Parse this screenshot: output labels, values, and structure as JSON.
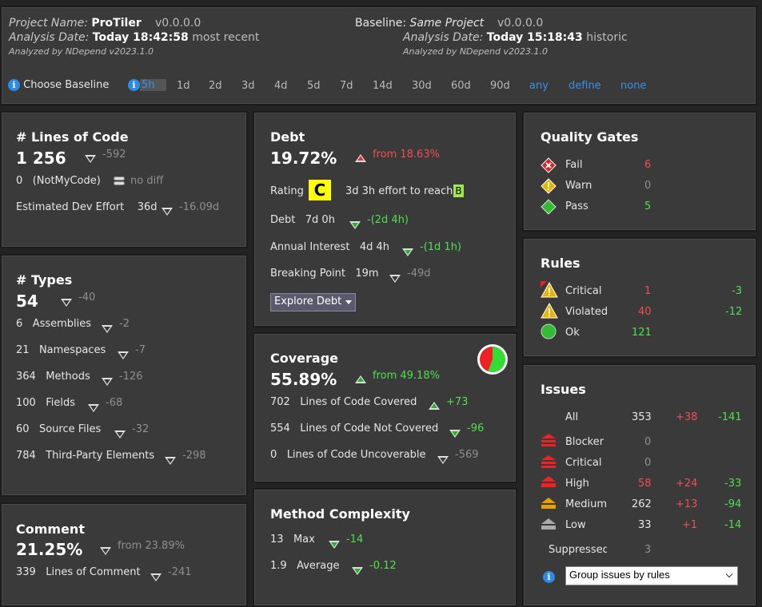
{
  "header": {
    "project_label": "Project Name:",
    "project_name": "ProTiler",
    "project_version": "v0.0.0.0",
    "analysis_label": "Analysis Date:",
    "analysis_date": "Today 18:42:58",
    "analysis_note": "most recent",
    "analyzed_by": "Analyzed by NDepend v2023.1.0",
    "baseline_label": "Baseline:",
    "baseline_name": "Same Project",
    "baseline_version": "v0.0.0.0",
    "baseline_analysis_label": "Analysis Date:",
    "baseline_analysis_date": "Today 15:18:43",
    "baseline_analysis_note": "historic",
    "baseline_analyzed_by": "Analyzed by NDepend v2023.1.0",
    "choose_baseline": "Choose Baseline",
    "options": [
      "5h",
      "1d",
      "2d",
      "3d",
      "4d",
      "5d",
      "7d",
      "14d",
      "30d",
      "60d",
      "90d"
    ],
    "links": [
      "any",
      "define",
      "none"
    ]
  },
  "loc": {
    "title": "# Lines of Code",
    "value": "1 256",
    "delta": "-592",
    "notmycode_value": "0",
    "notmycode_label": "(NotMyCode)",
    "notmycode_diff": "no diff",
    "effort_label": "Estimated Dev Effort",
    "effort_value": "36d",
    "effort_delta": "-16.09d"
  },
  "types": {
    "title": "# Types",
    "value": "54",
    "delta": "-40",
    "rows": [
      {
        "value": "6",
        "label": "Assemblies",
        "delta": "-2"
      },
      {
        "value": "21",
        "label": "Namespaces",
        "delta": "-7"
      },
      {
        "value": "364",
        "label": "Methods",
        "delta": "-126"
      },
      {
        "value": "100",
        "label": "Fields",
        "delta": "-68"
      },
      {
        "value": "60",
        "label": "Source Files",
        "delta": "-32"
      },
      {
        "value": "784",
        "label": "Third-Party Elements",
        "delta": "-298"
      }
    ]
  },
  "comment": {
    "title": "Comment",
    "value": "21.25%",
    "delta": "from 23.89%",
    "loc_value": "339",
    "loc_label": "Lines of Comment",
    "loc_delta": "-241"
  },
  "debt": {
    "title": "Debt",
    "value": "19.72%",
    "delta": "from 18.63%",
    "rating_label": "Rating",
    "rating": "C",
    "effort_text": "3d  3h effort to reach",
    "target_rating": "B",
    "debt_label": "Debt",
    "debt_value": "7d  0h",
    "debt_delta": "-(2d  4h)",
    "interest_label": "Annual Interest",
    "interest_value": "4d  4h",
    "interest_delta": "-(1d  1h)",
    "breaking_label": "Breaking Point",
    "breaking_value": "19m",
    "breaking_delta": "-49d",
    "explore_button": "Explore Debt"
  },
  "coverage": {
    "title": "Coverage",
    "value": "55.89%",
    "delta": "from 49.18%",
    "covered_fraction": 0.5589,
    "rows": [
      {
        "value": "702",
        "label": "Lines of Code Covered",
        "delta": "+73"
      },
      {
        "value": "554",
        "label": "Lines of Code Not Covered",
        "delta": "-96"
      },
      {
        "value": "0",
        "label": "Lines of Code Uncoverable",
        "delta": "-569"
      }
    ]
  },
  "complexity": {
    "title": "Method Complexity",
    "rows": [
      {
        "value": "13",
        "label": "Max",
        "delta": "-14"
      },
      {
        "value": "1.9",
        "label": "Average",
        "delta": "-0.12"
      }
    ]
  },
  "quality_gates": {
    "title": "Quality Gates",
    "rows": [
      {
        "label": "Fail",
        "value": "6"
      },
      {
        "label": "Warn",
        "value": "0"
      },
      {
        "label": "Pass",
        "value": "5"
      }
    ]
  },
  "rules": {
    "title": "Rules",
    "rows": [
      {
        "label": "Critical",
        "value": "1",
        "delta": "-3"
      },
      {
        "label": "Violated",
        "value": "40",
        "delta": "-12"
      },
      {
        "label": "Ok",
        "value": "121",
        "delta": ""
      }
    ]
  },
  "issues": {
    "title": "Issues",
    "rows": [
      {
        "label": "All",
        "value": "353",
        "plus": "+38",
        "minus": "-141"
      },
      {
        "label": "Blocker",
        "value": "0",
        "plus": "",
        "minus": ""
      },
      {
        "label": "Critical",
        "value": "0",
        "plus": "",
        "minus": ""
      },
      {
        "label": "High",
        "value": "58",
        "plus": "+24",
        "minus": "-33"
      },
      {
        "label": "Medium",
        "value": "262",
        "plus": "+13",
        "minus": "-94"
      },
      {
        "label": "Low",
        "value": "33",
        "plus": "+1",
        "minus": "-14"
      }
    ],
    "suppressed_label": "Suppressed",
    "suppressed_value": "3",
    "group_select": "Group issues by rules"
  }
}
